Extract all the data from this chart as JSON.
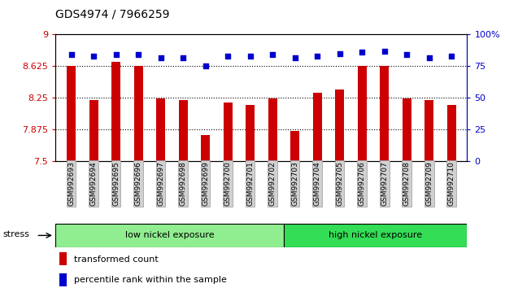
{
  "title": "GDS4974 / 7966259",
  "samples": [
    "GSM992693",
    "GSM992694",
    "GSM992695",
    "GSM992696",
    "GSM992697",
    "GSM992698",
    "GSM992699",
    "GSM992700",
    "GSM992701",
    "GSM992702",
    "GSM992703",
    "GSM992704",
    "GSM992705",
    "GSM992706",
    "GSM992707",
    "GSM992708",
    "GSM992709",
    "GSM992710"
  ],
  "bar_values": [
    8.625,
    8.22,
    8.68,
    8.625,
    8.245,
    8.22,
    7.81,
    8.2,
    8.17,
    8.245,
    7.86,
    8.31,
    8.35,
    8.63,
    8.63,
    8.245,
    8.22,
    8.17
  ],
  "percentile_values": [
    84,
    83,
    84,
    84,
    82,
    82,
    75,
    83,
    83,
    84,
    82,
    83,
    85,
    86,
    87,
    84,
    82,
    83
  ],
  "ylim_left": [
    7.5,
    9.0
  ],
  "ylim_right": [
    0,
    100
  ],
  "yticks_left": [
    7.5,
    7.875,
    8.25,
    8.625,
    9.0
  ],
  "ytick_labels_left": [
    "7.5",
    "7.875",
    "8.25",
    "8.625",
    "9"
  ],
  "yticks_right": [
    0,
    25,
    50,
    75,
    100
  ],
  "ytick_labels_right": [
    "0",
    "25",
    "50",
    "75",
    "100%"
  ],
  "bar_color": "#cc0000",
  "dot_color": "#0000cc",
  "low_nickel_count": 10,
  "high_nickel_count": 8,
  "low_nickel_label": "low nickel exposure",
  "high_nickel_label": "high nickel exposure",
  "stress_label": "stress",
  "legend_bar_label": "transformed count",
  "legend_dot_label": "percentile rank within the sample",
  "low_nickel_color": "#90ee90",
  "high_nickel_color": "#33dd55",
  "title_fontsize": 10
}
